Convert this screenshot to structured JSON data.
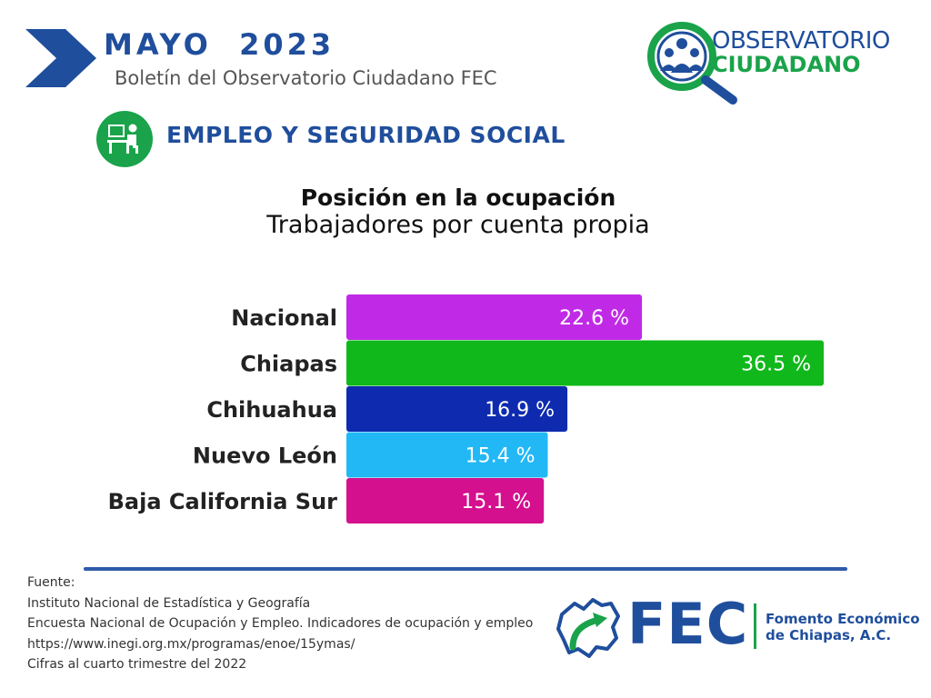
{
  "header": {
    "title": "MAYO  2023",
    "subtitle": "Boletín del Observatorio Ciudadano FEC",
    "accent_color": "#1f4e9c"
  },
  "observatorio_logo": {
    "line1": "OBSERVATORIO",
    "line2": "CIUDADANO"
  },
  "section": {
    "title": "EMPLEO Y SEGURIDAD SOCIAL",
    "icon": "worker-desk-icon"
  },
  "chart_data": {
    "type": "bar",
    "orientation": "horizontal",
    "title": "Posición en la ocupación",
    "subtitle": "Trabajadores por cuenta propia",
    "categories": [
      "Nacional",
      "Chiapas",
      "Chihuahua",
      "Nuevo León",
      "Baja California Sur"
    ],
    "values": [
      22.6,
      36.5,
      16.9,
      15.4,
      15.1
    ],
    "value_labels": [
      "22.6 %",
      "36.5 %",
      "16.9 %",
      "15.4 %",
      "15.1 %"
    ],
    "colors": [
      "#c02ae6",
      "#10b81b",
      "#0e2bb0",
      "#22b8f5",
      "#d4108f"
    ],
    "xlim": [
      0,
      36.5
    ],
    "grid": false,
    "legend": "none"
  },
  "sources": {
    "lines": [
      "Fuente:",
      "Instituto Nacional de Estadística y Geografía",
      "Encuesta Nacional de Ocupación y Empleo. Indicadores de ocupación y empleo",
      "https://www.inegi.org.mx/programas/enoe/15ymas/",
      "Cifras al cuarto trimestre del 2022"
    ]
  },
  "fec_logo": {
    "acronym": "FEC",
    "name_line1": "Fomento Económico",
    "name_line2": "de Chiapas, A.C.",
    "blue": "#1f4e9c",
    "green": "#1aa34a"
  }
}
